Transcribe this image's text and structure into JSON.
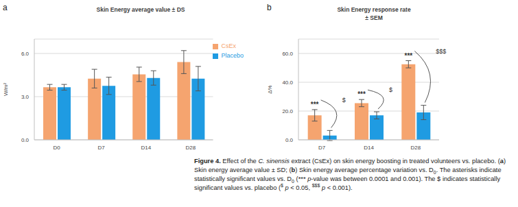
{
  "chart_data": [
    {
      "label": "a",
      "type": "bar",
      "title": "Skin Energy average value ± DS",
      "ylabel": "W/m²",
      "categories": [
        "D0",
        "D7",
        "D14",
        "D28"
      ],
      "series": [
        {
          "name": "CsEx",
          "color": "#F5A46F",
          "values": [
            3.65,
            4.25,
            4.55,
            5.4
          ],
          "errors": [
            0.2,
            0.65,
            0.5,
            0.8
          ]
        },
        {
          "name": "Placebo",
          "color": "#1F9BE2",
          "values": [
            3.65,
            3.75,
            4.3,
            4.25
          ],
          "errors": [
            0.2,
            0.6,
            0.5,
            0.85
          ]
        }
      ],
      "ylim": [
        0,
        7
      ],
      "yticks": [
        {
          "value": 0,
          "label": "0.0"
        },
        {
          "value": 3,
          "label": "3.0"
        },
        {
          "value": 6,
          "label": "6.0"
        }
      ],
      "grid": true,
      "legend": "upper right"
    },
    {
      "label": "b",
      "type": "bar",
      "title": "Skin Energy response rate\n± SEM",
      "ylabel": "Δ%",
      "categories": [
        "D7",
        "D14",
        "D28"
      ],
      "series": [
        {
          "name": "CsEx",
          "color": "#F5A46F",
          "values": [
            17,
            25.5,
            52.5
          ],
          "errors": [
            4,
            2.5,
            2.5
          ]
        },
        {
          "name": "Placebo",
          "color": "#1F9BE2",
          "values": [
            3,
            17,
            19
          ],
          "errors": [
            3.5,
            2.5,
            5
          ]
        }
      ],
      "ylim": [
        0,
        70
      ],
      "yticks": [
        {
          "value": 0,
          "label": "0.0"
        },
        {
          "value": 20,
          "label": "20.0"
        },
        {
          "value": 40,
          "label": "40.0"
        },
        {
          "value": 60,
          "label": "60.0"
        }
      ],
      "grid": true,
      "annotations": [
        {
          "category": "D7",
          "series": "CsEx",
          "text": "***"
        },
        {
          "category": "D14",
          "series": "CsEx",
          "text": "***"
        },
        {
          "category": "D28",
          "series": "CsEx",
          "text": "***"
        },
        {
          "category": "D7",
          "series": "Placebo",
          "text": "$"
        },
        {
          "category": "D14",
          "series": "Placebo",
          "text": "$"
        },
        {
          "category": "D28",
          "series": "Placebo",
          "text": "$$$"
        }
      ]
    }
  ],
  "caption": [
    {
      "text": "Figure 4.",
      "style": "bold"
    },
    {
      "text": " Effect of the "
    },
    {
      "text": "C. sinensis",
      "style": "italic"
    },
    {
      "text": " extract (CsEx) on skin energy boosting in treated volunteers vs. placebo. ("
    },
    {
      "text": "a",
      "style": "bold"
    },
    {
      "text": ") Skin energy average value ± SD; ("
    },
    {
      "text": "b",
      "style": "bold"
    },
    {
      "text": ") Skin energy average percentage variation vs. D"
    },
    {
      "text": "0",
      "style": "sub"
    },
    {
      "text": ". The asterisks indicate statistically significant values vs. D"
    },
    {
      "text": "0",
      "style": "sub"
    },
    {
      "text": " (*** "
    },
    {
      "text": "p",
      "style": "italic"
    },
    {
      "text": "-value was between 0.0001 and 0.001). The $ indicates statistically significant values vs. placebo ("
    },
    {
      "text": "$",
      "style": "sup"
    },
    {
      "text": " "
    },
    {
      "text": "p",
      "style": "italic"
    },
    {
      "text": " < 0.05, "
    },
    {
      "text": "$$$",
      "style": "sup"
    },
    {
      "text": " "
    },
    {
      "text": "p",
      "style": "italic"
    },
    {
      "text": " < 0.001)."
    }
  ]
}
